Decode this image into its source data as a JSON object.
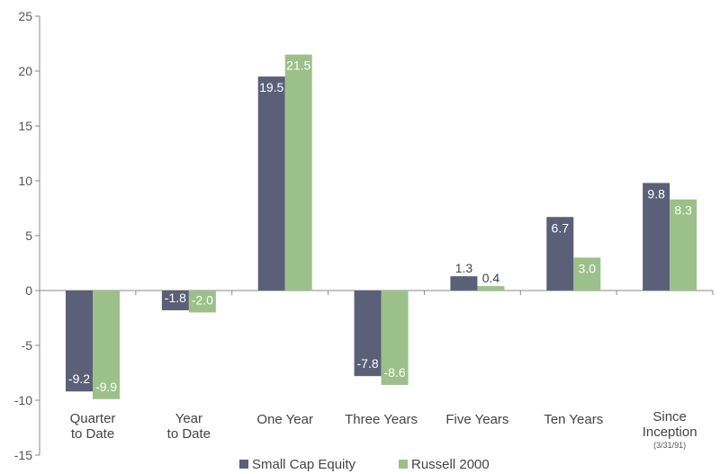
{
  "chart_data": {
    "type": "bar",
    "categories": [
      [
        "Quarter",
        "to Date"
      ],
      [
        "Year",
        "to Date"
      ],
      [
        "One Year"
      ],
      [
        "Three Years"
      ],
      [
        "Five Years"
      ],
      [
        "Ten Years"
      ],
      [
        "Since",
        "Inception"
      ]
    ],
    "category_notes": [
      "",
      "",
      "",
      "",
      "",
      "",
      "(3/31/91)"
    ],
    "series": [
      {
        "name": "Small Cap Equity",
        "color": "#5b5f78",
        "values": [
          -9.2,
          -1.8,
          19.5,
          -7.8,
          1.3,
          6.7,
          9.8
        ],
        "labels": [
          "-9.2",
          "-1.8",
          "19.5",
          "-7.8",
          "1.3",
          "6.7",
          "9.8"
        ]
      },
      {
        "name": "Russell 2000",
        "color": "#9cc08a",
        "values": [
          -9.9,
          -2.0,
          21.5,
          -8.6,
          0.4,
          3.0,
          8.3
        ],
        "labels": [
          "-9.9",
          "-2.0",
          "21.5",
          "-8.6",
          "0.4",
          "3.0",
          "8.3"
        ]
      }
    ],
    "ylim": [
      -15,
      25
    ],
    "yticks": [
      25,
      20,
      15,
      10,
      5,
      0,
      -5,
      -10,
      -15
    ],
    "ytick_labels": [
      "25",
      "20",
      "15",
      "10",
      "5",
      "0",
      "-5",
      "-10",
      "-15"
    ],
    "title": "",
    "xlabel": "",
    "ylabel": "",
    "grid": false,
    "legend_position": "bottom-center"
  }
}
